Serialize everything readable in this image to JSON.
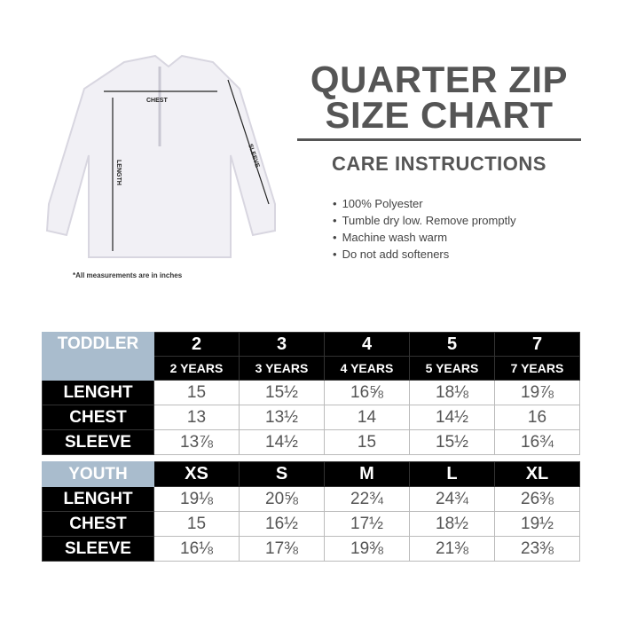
{
  "title_line1": "QUARTER ZIP",
  "title_line2": "SIZE CHART",
  "care_heading": "CARE INSTRUCTIONS",
  "care_items": [
    "100% Polyester",
    "Tumble dry low. Remove promptly",
    "Machine wash warm",
    "Do not add softeners"
  ],
  "diagram": {
    "chest": "CHEST",
    "length": "LENGTH",
    "sleeve": "SLEEVE",
    "note": "*All measurements are in inches"
  },
  "toddler": {
    "group": "TODDLER",
    "sizes": [
      "2",
      "3",
      "4",
      "5",
      "7"
    ],
    "ages": [
      "2 YEARS",
      "3 YEARS",
      "4 YEARS",
      "5 YEARS",
      "7 YEARS"
    ],
    "rows": [
      {
        "label": "LENGHT",
        "values": [
          "15",
          "15½",
          "16⅝",
          "18⅛",
          "19⅞"
        ]
      },
      {
        "label": "CHEST",
        "values": [
          "13",
          "13½",
          "14",
          "14½",
          "16"
        ]
      },
      {
        "label": "SLEEVE",
        "values": [
          "13⅞",
          "14½",
          "15",
          "15½",
          "16¾"
        ]
      }
    ]
  },
  "youth": {
    "group": "YOUTH",
    "sizes": [
      "XS",
      "S",
      "M",
      "L",
      "XL"
    ],
    "rows": [
      {
        "label": "LENGHT",
        "values": [
          "19⅛",
          "20⅝",
          "22¾",
          "24¾",
          "26⅜"
        ]
      },
      {
        "label": "CHEST",
        "values": [
          "15",
          "16½",
          "17½",
          "18½",
          "19½"
        ]
      },
      {
        "label": "SLEEVE",
        "values": [
          "16⅛",
          "17⅜",
          "19⅜",
          "21⅜",
          "23⅜"
        ]
      }
    ]
  }
}
